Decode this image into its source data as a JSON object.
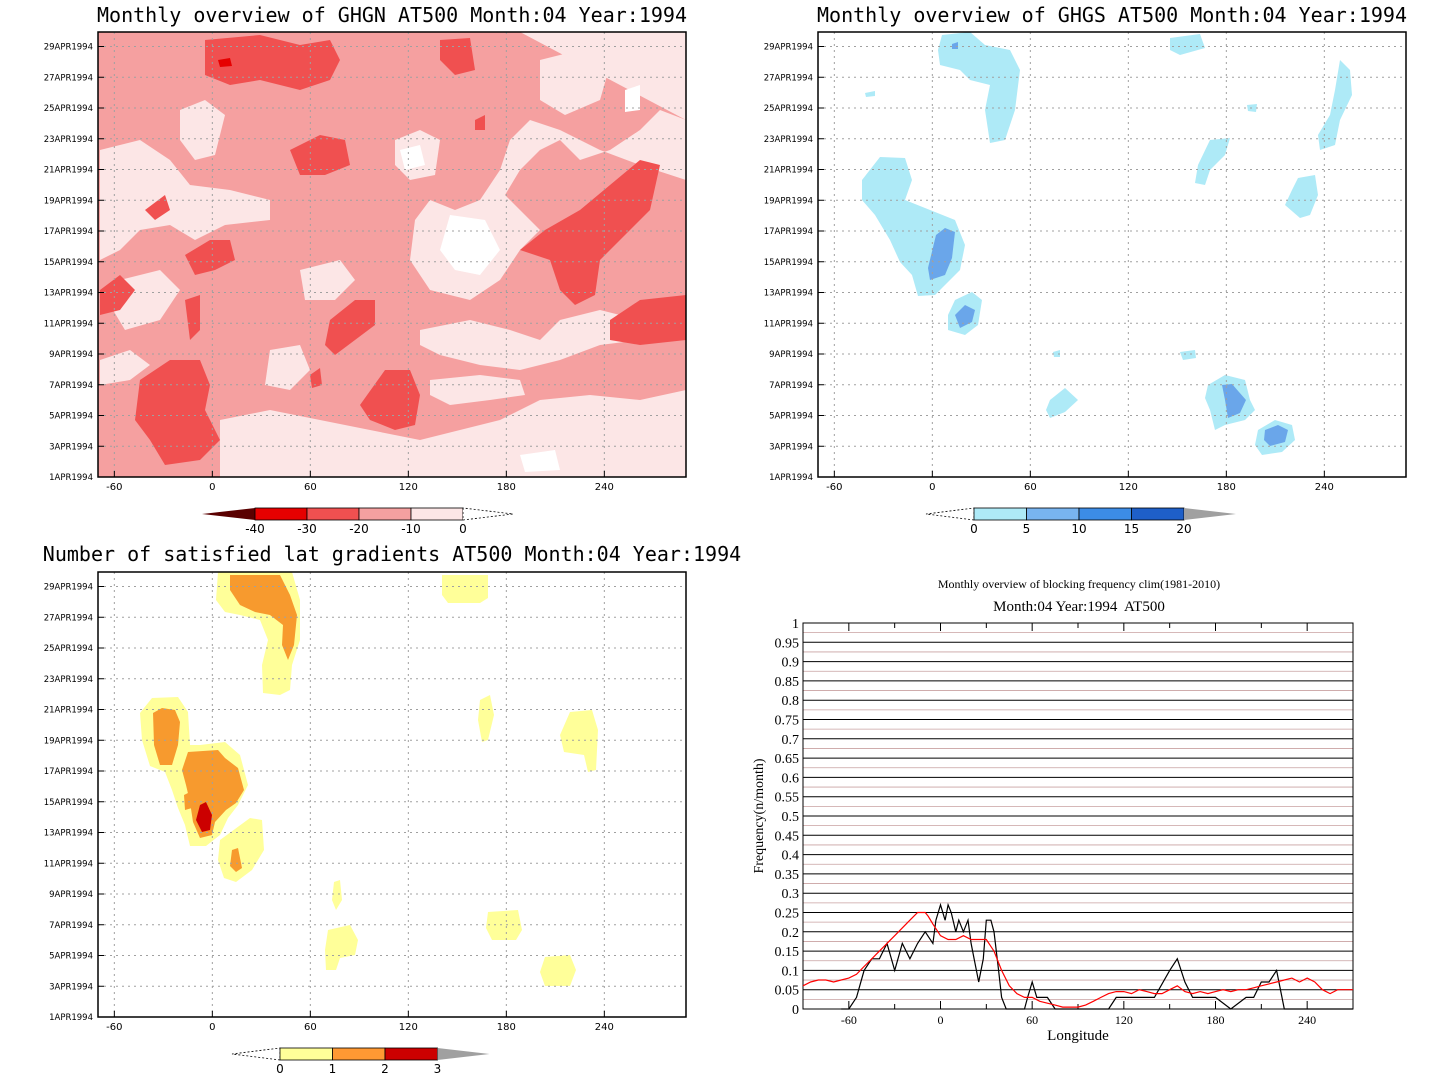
{
  "chart_data": [
    {
      "type": "heatmap",
      "title": "Monthly overview of GHGN AT500 Month:04 Year:1994",
      "xlim": [
        -70,
        290
      ],
      "x_ticks": [
        "-60",
        "0",
        "60",
        "120",
        "180",
        "240"
      ],
      "x_tick_values": [
        -60,
        0,
        60,
        120,
        180,
        240
      ],
      "y_ticks": [
        "1APR1994",
        "3APR1994",
        "5APR1994",
        "7APR1994",
        "9APR1994",
        "11APR1994",
        "13APR1994",
        "15APR1994",
        "17APR1994",
        "19APR1994",
        "21APR1994",
        "23APR1994",
        "25APR1994",
        "27APR1994",
        "29APR1994"
      ],
      "colorbar": {
        "labels": [
          "-40",
          "-30",
          "-20",
          "-10",
          "0"
        ],
        "colors": [
          "#5a0000",
          "#e60000",
          "#f05050",
          "#f5a0a0",
          "#fce6e6",
          "#ffffff"
        ]
      },
      "fill_colors": {
        "dark": "#f05050",
        "mid": "#f5a0a0",
        "light": "#fce6e6",
        "darkest": "#e60000"
      }
    },
    {
      "type": "heatmap",
      "title": "Monthly overview of GHGS AT500 Month:04 Year:1994",
      "xlim": [
        -70,
        290
      ],
      "x_ticks": [
        "-60",
        "0",
        "60",
        "120",
        "180",
        "240"
      ],
      "x_tick_values": [
        -60,
        0,
        60,
        120,
        180,
        240
      ],
      "y_ticks": [
        "1APR1994",
        "3APR1994",
        "5APR1994",
        "7APR1994",
        "9APR1994",
        "11APR1994",
        "13APR1994",
        "15APR1994",
        "17APR1994",
        "19APR1994",
        "21APR1994",
        "23APR1994",
        "25APR1994",
        "27APR1994",
        "29APR1994"
      ],
      "colorbar": {
        "labels": [
          "0",
          "5",
          "10",
          "15",
          "20"
        ],
        "colors": [
          "#ffffff",
          "#aeeaf7",
          "#78b4f0",
          "#3c8ce6",
          "#1e5fc8",
          "#a0a0a0"
        ]
      },
      "fill_colors": {
        "light": "#aeeaf7",
        "mid": "#6aa6ea"
      }
    },
    {
      "type": "heatmap",
      "title": "Number of satisfied lat gradients AT500 Month:04 Year:1994",
      "xlim": [
        -70,
        290
      ],
      "x_ticks": [
        "-60",
        "0",
        "60",
        "120",
        "180",
        "240"
      ],
      "x_tick_values": [
        -60,
        0,
        60,
        120,
        180,
        240
      ],
      "y_ticks": [
        "1APR1994",
        "3APR1994",
        "5APR1994",
        "7APR1994",
        "9APR1994",
        "11APR1994",
        "13APR1994",
        "15APR1994",
        "17APR1994",
        "19APR1994",
        "21APR1994",
        "23APR1994",
        "25APR1994",
        "27APR1994",
        "29APR1994"
      ],
      "colorbar": {
        "labels": [
          "0",
          "1",
          "2",
          "3"
        ],
        "colors": [
          "#ffffff",
          "#ffff99",
          "#ff9933",
          "#cc0000",
          "#a0a0a0"
        ]
      },
      "fill_colors": {
        "yellow": "#ffff99",
        "orange": "#f79a2e",
        "red": "#cc0000"
      }
    },
    {
      "type": "line",
      "title": "Monthly overview of blocking frequency clim(1981-2010)",
      "subtitle": "Month:04 Year:1994  AT500",
      "xlabel": "Longitude",
      "ylabel": "Frequency(n/month)",
      "xlim": [
        -90,
        270
      ],
      "ylim": [
        0,
        1
      ],
      "x_ticks": [
        "-60",
        "0",
        "60",
        "120",
        "180",
        "240"
      ],
      "x_tick_values": [
        -60,
        0,
        60,
        120,
        180,
        240
      ],
      "y_ticks": [
        "0",
        "0.05",
        "0.1",
        "0.15",
        "0.2",
        "0.25",
        "0.3",
        "0.35",
        "0.4",
        "0.45",
        "0.5",
        "0.55",
        "0.6",
        "0.65",
        "0.7",
        "0.75",
        "0.8",
        "0.85",
        "0.9",
        "0.95",
        "1"
      ],
      "series": [
        {
          "color": "#000000",
          "x": [
            -65,
            -60,
            -55,
            -50,
            -45,
            -40,
            -35,
            -30,
            -25,
            -20,
            -15,
            -10,
            -5,
            -3,
            0,
            3,
            5,
            7,
            10,
            12,
            15,
            18,
            20,
            22,
            25,
            28,
            30,
            33,
            35,
            38,
            40,
            43,
            45,
            50,
            55,
            57,
            60,
            63,
            65,
            70,
            75,
            80,
            90,
            100,
            105,
            110,
            115,
            120,
            125,
            130,
            140,
            150,
            155,
            160,
            165,
            170,
            175,
            180,
            190,
            200,
            205,
            210,
            215,
            220,
            225,
            230,
            240,
            250,
            260,
            270
          ],
          "y": [
            0,
            0,
            0.03,
            0.1,
            0.13,
            0.13,
            0.17,
            0.1,
            0.17,
            0.13,
            0.17,
            0.2,
            0.17,
            0.23,
            0.27,
            0.23,
            0.27,
            0.25,
            0.2,
            0.23,
            0.2,
            0.23,
            0.17,
            0.13,
            0.07,
            0.13,
            0.23,
            0.23,
            0.2,
            0.1,
            0.03,
            0,
            0,
            0,
            0,
            0.03,
            0.07,
            0.03,
            0.03,
            0.03,
            0,
            0,
            0,
            0,
            0,
            0,
            0.03,
            0.03,
            0.03,
            0.03,
            0.03,
            0.1,
            0.13,
            0.07,
            0.03,
            0.03,
            0.03,
            0.03,
            0,
            0.03,
            0.03,
            0.07,
            0.07,
            0.1,
            0,
            0,
            0,
            0,
            0,
            0
          ]
        },
        {
          "color": "#ff0000",
          "x": [
            -90,
            -85,
            -80,
            -75,
            -70,
            -65,
            -60,
            -55,
            -50,
            -45,
            -40,
            -35,
            -30,
            -25,
            -20,
            -15,
            -10,
            -8,
            -5,
            0,
            5,
            10,
            15,
            20,
            25,
            30,
            35,
            40,
            45,
            50,
            55,
            60,
            65,
            70,
            75,
            80,
            85,
            90,
            95,
            100,
            105,
            110,
            115,
            120,
            125,
            130,
            135,
            140,
            145,
            150,
            155,
            160,
            165,
            170,
            175,
            180,
            185,
            190,
            195,
            200,
            205,
            210,
            215,
            220,
            225,
            230,
            235,
            240,
            245,
            250,
            255,
            260,
            265,
            270
          ],
          "y": [
            0.06,
            0.07,
            0.075,
            0.075,
            0.07,
            0.075,
            0.08,
            0.09,
            0.11,
            0.13,
            0.15,
            0.17,
            0.19,
            0.21,
            0.23,
            0.25,
            0.25,
            0.24,
            0.22,
            0.19,
            0.18,
            0.18,
            0.19,
            0.18,
            0.18,
            0.18,
            0.15,
            0.1,
            0.06,
            0.04,
            0.03,
            0.03,
            0.02,
            0.015,
            0.01,
            0.005,
            0.005,
            0.005,
            0.01,
            0.02,
            0.03,
            0.04,
            0.045,
            0.045,
            0.04,
            0.05,
            0.045,
            0.04,
            0.04,
            0.05,
            0.06,
            0.045,
            0.04,
            0.045,
            0.04,
            0.045,
            0.05,
            0.045,
            0.05,
            0.05,
            0.055,
            0.06,
            0.065,
            0.07,
            0.075,
            0.08,
            0.07,
            0.08,
            0.07,
            0.05,
            0.04,
            0.05,
            0.05,
            0.05
          ]
        }
      ]
    }
  ]
}
